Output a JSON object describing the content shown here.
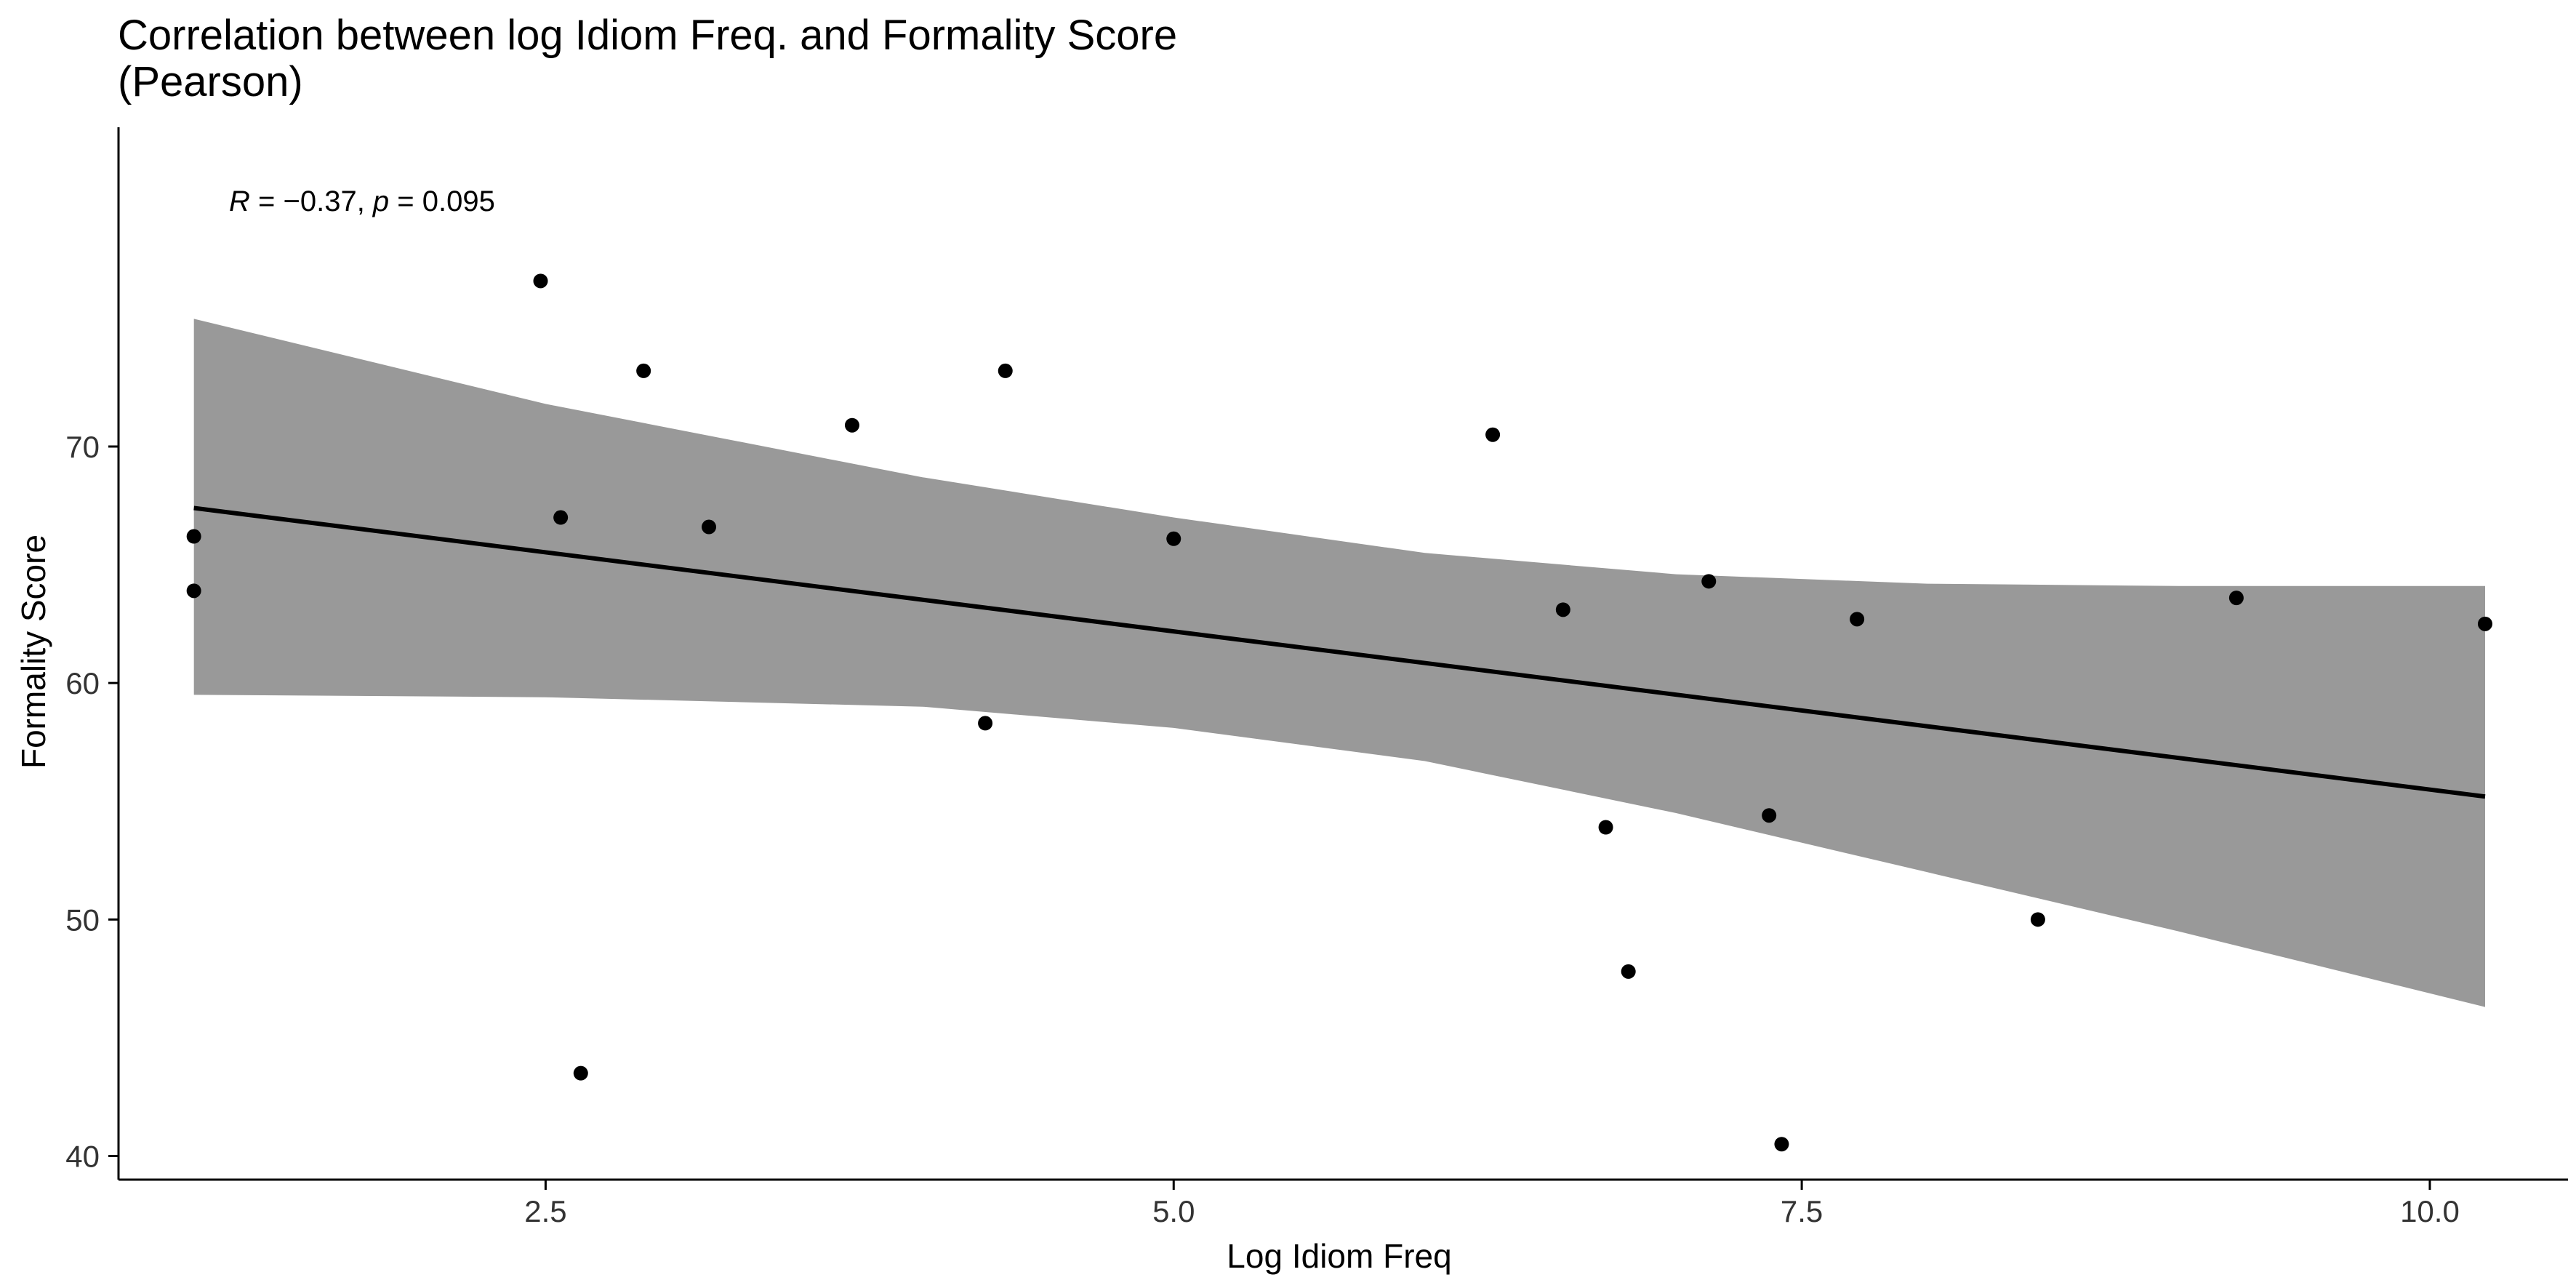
{
  "chart_data": {
    "type": "scatter",
    "title": [
      "Correlation between log Idiom Freq. and Formality Score",
      "(Pearson)"
    ],
    "xlabel": "Log Idiom Freq",
    "ylabel": "Formality Score",
    "xlim": [
      0.8,
      10.55
    ],
    "ylim": [
      39.0,
      83.5
    ],
    "x_ticks": [
      2.5,
      5.0,
      7.5,
      10.0
    ],
    "x_tick_labels": [
      "2.5",
      "5.0",
      "7.5",
      "10.0"
    ],
    "y_ticks": [
      40,
      50,
      60,
      70
    ],
    "y_tick_labels": [
      "40",
      "50",
      "60",
      "70"
    ],
    "grid": false,
    "annotation": {
      "r_symbol": "R",
      "r_text": " = −0.37, ",
      "p_symbol": "p",
      "p_text": " = 0.095"
    },
    "points": [
      {
        "x": 1.1,
        "y": 66.2
      },
      {
        "x": 1.1,
        "y": 63.9
      },
      {
        "x": 2.48,
        "y": 77.0
      },
      {
        "x": 2.56,
        "y": 67.0
      },
      {
        "x": 2.64,
        "y": 43.5
      },
      {
        "x": 2.89,
        "y": 73.2
      },
      {
        "x": 3.15,
        "y": 66.6
      },
      {
        "x": 3.72,
        "y": 70.9
      },
      {
        "x": 4.25,
        "y": 58.3
      },
      {
        "x": 4.33,
        "y": 73.2
      },
      {
        "x": 5.0,
        "y": 66.1
      },
      {
        "x": 6.27,
        "y": 70.5
      },
      {
        "x": 6.55,
        "y": 63.1
      },
      {
        "x": 6.72,
        "y": 53.9
      },
      {
        "x": 6.81,
        "y": 47.8
      },
      {
        "x": 7.13,
        "y": 64.3
      },
      {
        "x": 7.37,
        "y": 54.4
      },
      {
        "x": 7.42,
        "y": 40.5
      },
      {
        "x": 7.72,
        "y": 62.7
      },
      {
        "x": 8.44,
        "y": 50.0
      },
      {
        "x": 9.23,
        "y": 63.6
      },
      {
        "x": 10.22,
        "y": 62.5
      }
    ],
    "fit_line": {
      "x": [
        1.1,
        10.22
      ],
      "y": [
        67.4,
        55.2
      ]
    },
    "confidence_band": {
      "x": [
        1.1,
        2.5,
        4.0,
        5.0,
        6.0,
        7.0,
        8.0,
        9.0,
        10.22
      ],
      "upper": [
        75.4,
        71.8,
        68.7,
        67.0,
        65.5,
        64.6,
        64.2,
        64.1,
        64.1
      ],
      "lower": [
        59.5,
        59.4,
        59.0,
        58.1,
        56.7,
        54.5,
        52.0,
        49.5,
        46.3
      ]
    },
    "colors": {
      "points": "#000000",
      "fit_line": "#000000",
      "band": "#999999",
      "axis": "#000000",
      "tick_label": "#333333"
    }
  }
}
